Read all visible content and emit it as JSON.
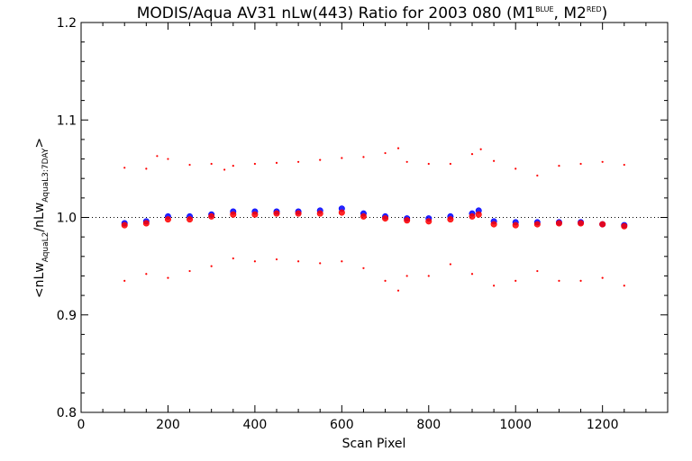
{
  "chart_data": {
    "type": "scatter",
    "title": "MODIS/Aqua AV31 nLw(443) Ratio for 2003 080 (M1",
    "title_sup1": "BLUE",
    "title_mid": ", M2",
    "title_sup2": "RED",
    "title_end": ")",
    "xlabel": "Scan Pixel",
    "ylabel_parts": [
      "<nLw",
      "AquaL2",
      "/nLw",
      "AquaL3:7DAY",
      ">"
    ],
    "xlim": [
      0,
      1350
    ],
    "ylim": [
      0.8,
      1.2
    ],
    "xticks": [
      0,
      200,
      400,
      600,
      800,
      1000,
      1200
    ],
    "yticks": [
      0.8,
      0.9,
      1.0,
      1.1,
      1.2
    ],
    "xtick_labels": [
      "0",
      "200",
      "400",
      "600",
      "800",
      "1000",
      "1200"
    ],
    "ytick_labels": [
      "0.8",
      "0.9",
      "1.0",
      "1.1",
      "1.2"
    ],
    "reference_line": 1.0,
    "grid": false,
    "colors": {
      "blue": "#0000ff",
      "red": "#ff0000",
      "axis": "#000000"
    },
    "series": [
      {
        "color": "#0000ff",
        "kind": "mean",
        "x": [
          100,
          150,
          200,
          250,
          300,
          350,
          400,
          450,
          500,
          550,
          600,
          650,
          700,
          750,
          800,
          850,
          900,
          915,
          950,
          1000,
          1050,
          1100,
          1150,
          1200,
          1250
        ],
        "y": [
          0.994,
          0.996,
          1.001,
          1.001,
          1.003,
          1.006,
          1.006,
          1.006,
          1.006,
          1.007,
          1.009,
          1.004,
          1.001,
          0.999,
          0.999,
          1.001,
          1.004,
          1.007,
          0.996,
          0.995,
          0.995,
          0.995,
          0.995,
          0.993,
          0.992
        ]
      },
      {
        "color": "#ff0000",
        "kind": "mean",
        "x": [
          100,
          150,
          200,
          250,
          300,
          350,
          400,
          450,
          500,
          550,
          600,
          650,
          700,
          750,
          800,
          850,
          900,
          915,
          950,
          1000,
          1050,
          1100,
          1150,
          1200,
          1250
        ],
        "y": [
          0.992,
          0.994,
          0.998,
          0.998,
          1.001,
          1.003,
          1.003,
          1.004,
          1.004,
          1.004,
          1.005,
          1.001,
          0.999,
          0.997,
          0.996,
          0.998,
          1.001,
          1.003,
          0.993,
          0.992,
          0.993,
          0.994,
          0.994,
          0.993,
          0.991
        ]
      },
      {
        "color": "#ff0000",
        "kind": "upper-envelope",
        "x": [
          100,
          150,
          175,
          200,
          250,
          300,
          330,
          350,
          400,
          450,
          500,
          550,
          600,
          650,
          700,
          730,
          750,
          800,
          850,
          900,
          920,
          950,
          1000,
          1050,
          1100,
          1150,
          1200,
          1250
        ],
        "y": [
          1.051,
          1.05,
          1.063,
          1.06,
          1.054,
          1.055,
          1.049,
          1.053,
          1.055,
          1.056,
          1.057,
          1.059,
          1.061,
          1.062,
          1.066,
          1.071,
          1.057,
          1.055,
          1.055,
          1.065,
          1.07,
          1.058,
          1.05,
          1.043,
          1.053,
          1.055,
          1.057,
          1.054
        ]
      },
      {
        "color": "#ff0000",
        "kind": "lower-envelope",
        "x": [
          100,
          150,
          200,
          250,
          300,
          350,
          400,
          450,
          500,
          550,
          600,
          650,
          700,
          730,
          750,
          800,
          850,
          900,
          950,
          1000,
          1050,
          1100,
          1150,
          1200,
          1250
        ],
        "y": [
          0.935,
          0.942,
          0.938,
          0.945,
          0.95,
          0.958,
          0.955,
          0.957,
          0.955,
          0.953,
          0.955,
          0.948,
          0.935,
          0.925,
          0.94,
          0.94,
          0.952,
          0.942,
          0.93,
          0.935,
          0.945,
          0.935,
          0.935,
          0.938,
          0.93
        ]
      }
    ]
  }
}
